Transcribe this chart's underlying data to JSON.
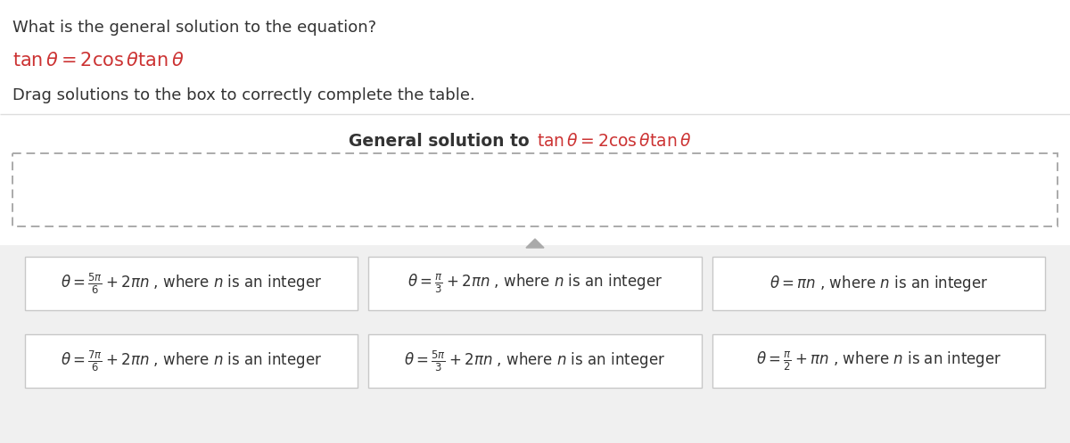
{
  "title_text": "What is the general solution to the equation?",
  "drag_text": "Drag solutions to the box to correctly complete the table.",
  "bg_color": "#f0f0f0",
  "white": "#ffffff",
  "box_border_color": "#c8c8c8",
  "dashed_color": "#aaaaaa",
  "separator_color": "#dddddd",
  "arrow_color": "#999999",
  "math_color": "#cc3333",
  "text_color": "#333333",
  "header_normal": "General solution to ",
  "cards": [
    "$\\theta = \\frac{5\\pi}{6} + 2\\pi n$ , where $n$ is an integer",
    "$\\theta = \\frac{\\pi}{3} + 2\\pi n$ , where $n$ is an integer",
    "$\\theta = \\pi n$ , where $n$ is an integer",
    "$\\theta = \\frac{7\\pi}{6} + 2\\pi n$ , where $n$ is an integer",
    "$\\theta = \\frac{5\\pi}{3} + 2\\pi n$ , where $n$ is an integer",
    "$\\theta = \\frac{\\pi}{2} + \\pi n$ , where $n$ is an integer"
  ],
  "fig_width": 12.0,
  "fig_height": 4.97,
  "dpi": 100
}
